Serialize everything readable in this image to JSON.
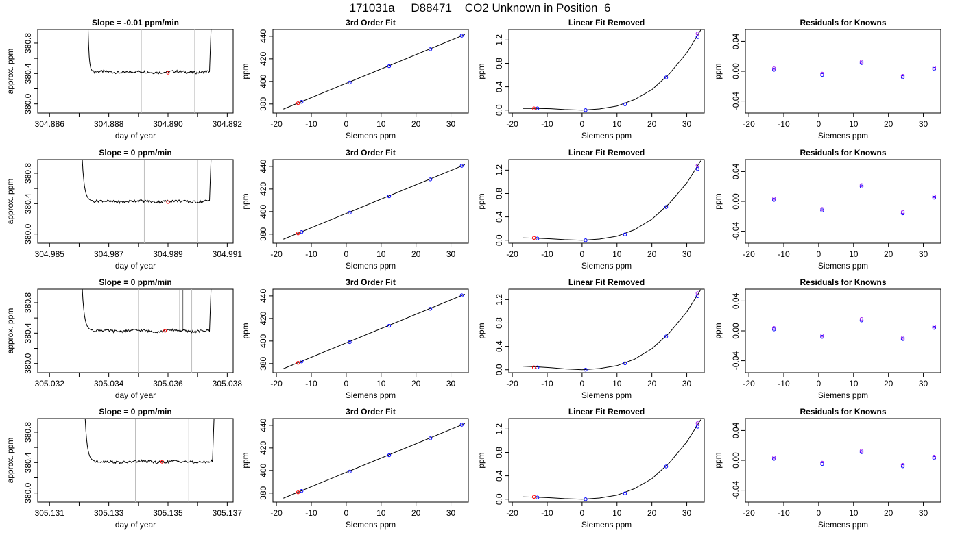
{
  "figure_title": "171031a     D88471    CO2 Unknown in Position  6",
  "colors": {
    "series": "#000000",
    "marker_red": "#ff0000",
    "marker_blue": "#0000ff",
    "marker_purple": "#a020f0",
    "vline": "#bebebe"
  },
  "chart_data": [
    {
      "type": "line",
      "title": "Slope =  -0.01  ppm/min",
      "xlabel": "day of year",
      "ylabel": "approx. ppm",
      "xticks": [
        "304.886",
        "304.888",
        "304.890",
        "304.892"
      ],
      "yticks": [
        "380.0",
        "380.4",
        "380.8"
      ],
      "xlim": [
        304.8856,
        304.8922
      ],
      "ylim": [
        379.88,
        380.98
      ],
      "vlines": [
        304.8891,
        304.8909
      ],
      "marker": {
        "x": 304.89,
        "y": 380.41
      },
      "trace": {
        "start": 304.8872,
        "end": 304.8915,
        "baseline": 380.42,
        "rise_left": 304.8873,
        "steady_start": 304.8874,
        "steady_end": 304.8914
      }
    },
    {
      "type": "scatter",
      "title": "3rd Order Fit",
      "xlabel": "Siemens ppm",
      "ylabel": "ppm",
      "xticks": [
        "-20",
        "-10",
        "0",
        "10",
        "20",
        "30"
      ],
      "yticks": [
        "380",
        "400",
        "420",
        "440"
      ],
      "xlim": [
        -21,
        35
      ],
      "ylim": [
        372,
        446
      ],
      "fit_line": {
        "x": [
          -18,
          34
        ],
        "y": [
          375.5,
          441.5
        ]
      },
      "points": [
        {
          "x": -12.8,
          "y": 381.9,
          "color": "blue"
        },
        {
          "x": 1.0,
          "y": 399.0,
          "color": "blue"
        },
        {
          "x": 12.3,
          "y": 413.5,
          "color": "blue"
        },
        {
          "x": 24.1,
          "y": 428.5,
          "color": "blue"
        },
        {
          "x": 33.1,
          "y": 440.5,
          "color": "blue"
        },
        {
          "x": -13.8,
          "y": 380.7,
          "color": "red"
        }
      ]
    },
    {
      "type": "scatter",
      "title": "Linear Fit Removed",
      "xlabel": "Siemens ppm",
      "ylabel": "ppm",
      "xticks": [
        "-20",
        "-10",
        "0",
        "10",
        "20",
        "30"
      ],
      "yticks": [
        "0.0",
        "0.4",
        "0.8",
        "1.2"
      ],
      "xlim": [
        -21,
        35
      ],
      "ylim": [
        -0.05,
        1.38
      ],
      "curve": {
        "x": [
          -17,
          -13,
          -9,
          -5,
          0,
          5,
          10,
          15,
          20,
          25,
          30,
          34
        ],
        "y": [
          0.03,
          0.03,
          0.025,
          0.01,
          0.0,
          0.02,
          0.07,
          0.18,
          0.35,
          0.62,
          0.98,
          1.37
        ]
      },
      "points": [
        {
          "x": -12.8,
          "y": 0.03,
          "color": "blue"
        },
        {
          "x": 1.0,
          "y": 0.0,
          "color": "blue"
        },
        {
          "x": 12.3,
          "y": 0.1,
          "color": "blue"
        },
        {
          "x": 24.1,
          "y": 0.56,
          "color": "blue"
        },
        {
          "x": 33.1,
          "y": 1.25,
          "color": "blue"
        },
        {
          "x": 33.1,
          "y": 1.31,
          "color": "purple"
        },
        {
          "x": -13.8,
          "y": 0.03,
          "color": "red"
        }
      ]
    },
    {
      "type": "scatter",
      "title": "Residuals for Knowns",
      "xlabel": "Siemens ppm",
      "ylabel": "ppm",
      "xticks": [
        "-20",
        "-10",
        "0",
        "10",
        "20",
        "30"
      ],
      "yticks": [
        "-0.04",
        "0.00",
        "0.04"
      ],
      "xlim": [
        -21,
        35
      ],
      "ylim": [
        -0.056,
        0.056
      ],
      "points": [
        {
          "x": -12.8,
          "y": 0.002,
          "color": "blue"
        },
        {
          "x": 1.0,
          "y": -0.005,
          "color": "blue"
        },
        {
          "x": 12.3,
          "y": 0.011,
          "color": "blue"
        },
        {
          "x": 24.1,
          "y": -0.008,
          "color": "blue"
        },
        {
          "x": 33.1,
          "y": 0.003,
          "color": "blue"
        }
      ]
    },
    {
      "type": "line",
      "title": "Slope =  0  ppm/min",
      "xlabel": "day of year",
      "ylabel": "approx. ppm",
      "xticks": [
        "304.985",
        "304.987",
        "304.989",
        "304.991"
      ],
      "yticks": [
        "380.0",
        "380.4",
        "380.8"
      ],
      "xlim": [
        304.9846,
        304.9912
      ],
      "ylim": [
        379.88,
        380.98
      ],
      "vlines": [
        304.9882,
        304.99
      ],
      "marker": {
        "x": 304.989,
        "y": 380.42
      },
      "trace": {
        "start": 304.986,
        "end": 304.9905,
        "baseline": 380.43,
        "rise_left": 304.9861,
        "steady_start": 304.9863,
        "steady_end": 304.9904
      }
    },
    {
      "type": "scatter",
      "title": "3rd Order Fit",
      "xlabel": "Siemens ppm",
      "ylabel": "ppm",
      "xticks": [
        "-20",
        "-10",
        "0",
        "10",
        "20",
        "30"
      ],
      "yticks": [
        "380",
        "400",
        "420",
        "440"
      ],
      "xlim": [
        -21,
        35
      ],
      "ylim": [
        372,
        446
      ],
      "fit_line": {
        "x": [
          -18,
          34
        ],
        "y": [
          375.5,
          441.5
        ]
      },
      "points": [
        {
          "x": -12.8,
          "y": 381.9,
          "color": "blue"
        },
        {
          "x": 1.0,
          "y": 399.0,
          "color": "blue"
        },
        {
          "x": 12.3,
          "y": 413.5,
          "color": "blue"
        },
        {
          "x": 24.1,
          "y": 428.5,
          "color": "blue"
        },
        {
          "x": 33.1,
          "y": 440.5,
          "color": "blue"
        },
        {
          "x": -13.8,
          "y": 380.7,
          "color": "red"
        }
      ]
    },
    {
      "type": "scatter",
      "title": "Linear Fit Removed",
      "xlabel": "Siemens ppm",
      "ylabel": "ppm",
      "xticks": [
        "-20",
        "-10",
        "0",
        "10",
        "20",
        "30"
      ],
      "yticks": [
        "0.0",
        "0.4",
        "0.8",
        "1.2"
      ],
      "xlim": [
        -21,
        35
      ],
      "ylim": [
        -0.05,
        1.38
      ],
      "curve": {
        "x": [
          -17,
          -13,
          -9,
          -5,
          0,
          5,
          10,
          15,
          20,
          25,
          30,
          34
        ],
        "y": [
          0.04,
          0.035,
          0.025,
          0.01,
          0.0,
          0.02,
          0.07,
          0.18,
          0.36,
          0.63,
          0.98,
          1.36
        ]
      },
      "points": [
        {
          "x": -12.8,
          "y": 0.03,
          "color": "blue"
        },
        {
          "x": 1.0,
          "y": 0.0,
          "color": "blue"
        },
        {
          "x": 12.3,
          "y": 0.1,
          "color": "blue"
        },
        {
          "x": 24.1,
          "y": 0.57,
          "color": "blue"
        },
        {
          "x": 33.1,
          "y": 1.22,
          "color": "blue"
        },
        {
          "x": 33.1,
          "y": 1.28,
          "color": "purple"
        },
        {
          "x": -13.8,
          "y": 0.04,
          "color": "red"
        }
      ]
    },
    {
      "type": "scatter",
      "title": "Residuals for Knowns",
      "xlabel": "Siemens ppm",
      "ylabel": "ppm",
      "xticks": [
        "-20",
        "-10",
        "0",
        "10",
        "20",
        "30"
      ],
      "yticks": [
        "-0.04",
        "0.00",
        "0.04"
      ],
      "xlim": [
        -21,
        35
      ],
      "ylim": [
        -0.056,
        0.056
      ],
      "points": [
        {
          "x": -12.8,
          "y": 0.002,
          "color": "blue"
        },
        {
          "x": 1.0,
          "y": -0.012,
          "color": "blue"
        },
        {
          "x": 12.3,
          "y": 0.02,
          "color": "blue"
        },
        {
          "x": 24.1,
          "y": -0.016,
          "color": "blue"
        },
        {
          "x": 33.1,
          "y": 0.005,
          "color": "blue"
        }
      ]
    },
    {
      "type": "line",
      "title": "Slope =  0  ppm/min",
      "xlabel": "day of year",
      "ylabel": "approx. ppm",
      "xticks": [
        "305.032",
        "305.034",
        "305.036",
        "305.038"
      ],
      "yticks": [
        "380.0",
        "380.4",
        "380.8"
      ],
      "xlim": [
        305.0316,
        305.0382
      ],
      "ylim": [
        379.88,
        380.98
      ],
      "vlines": [
        305.035,
        305.0368
      ],
      "marker": {
        "x": 305.0359,
        "y": 380.43
      },
      "spike": [
        305.0364,
        305.0365
      ],
      "trace": {
        "start": 305.033,
        "end": 305.0375,
        "baseline": 380.43,
        "rise_left": 305.0331,
        "steady_start": 305.0333,
        "steady_end": 305.0374
      }
    },
    {
      "type": "scatter",
      "title": "3rd Order Fit",
      "xlabel": "Siemens ppm",
      "ylabel": "ppm",
      "xticks": [
        "-20",
        "-10",
        "0",
        "10",
        "20",
        "30"
      ],
      "yticks": [
        "380",
        "400",
        "420",
        "440"
      ],
      "xlim": [
        -21,
        35
      ],
      "ylim": [
        372,
        446
      ],
      "fit_line": {
        "x": [
          -18,
          34
        ],
        "y": [
          375.5,
          441.5
        ]
      },
      "points": [
        {
          "x": -12.8,
          "y": 381.9,
          "color": "blue"
        },
        {
          "x": 1.0,
          "y": 399.0,
          "color": "blue"
        },
        {
          "x": 12.3,
          "y": 413.5,
          "color": "blue"
        },
        {
          "x": 24.1,
          "y": 428.5,
          "color": "blue"
        },
        {
          "x": 33.1,
          "y": 440.5,
          "color": "blue"
        },
        {
          "x": -13.8,
          "y": 380.7,
          "color": "red"
        }
      ]
    },
    {
      "type": "scatter",
      "title": "Linear Fit Removed",
      "xlabel": "Siemens ppm",
      "ylabel": "ppm",
      "xticks": [
        "-20",
        "-10",
        "0",
        "10",
        "20",
        "30"
      ],
      "yticks": [
        "0.0",
        "0.4",
        "0.8",
        "1.2"
      ],
      "xlim": [
        -21,
        35
      ],
      "ylim": [
        -0.05,
        1.38
      ],
      "curve": {
        "x": [
          -17,
          -13,
          -9,
          -5,
          0,
          5,
          10,
          15,
          20,
          25,
          30,
          34
        ],
        "y": [
          0.06,
          0.05,
          0.035,
          0.015,
          0.0,
          0.02,
          0.07,
          0.18,
          0.36,
          0.63,
          0.99,
          1.37
        ]
      },
      "points": [
        {
          "x": -12.8,
          "y": 0.04,
          "color": "blue"
        },
        {
          "x": 1.0,
          "y": 0.0,
          "color": "blue"
        },
        {
          "x": 12.3,
          "y": 0.11,
          "color": "blue"
        },
        {
          "x": 24.1,
          "y": 0.57,
          "color": "blue"
        },
        {
          "x": 33.1,
          "y": 1.26,
          "color": "blue"
        },
        {
          "x": 33.1,
          "y": 1.31,
          "color": "purple"
        },
        {
          "x": -13.8,
          "y": 0.04,
          "color": "red"
        }
      ]
    },
    {
      "type": "scatter",
      "title": "Residuals for Knowns",
      "xlabel": "Siemens ppm",
      "ylabel": "ppm",
      "xticks": [
        "-20",
        "-10",
        "0",
        "10",
        "20",
        "30"
      ],
      "yticks": [
        "-0.04",
        "0.00",
        "0.04"
      ],
      "xlim": [
        -21,
        35
      ],
      "ylim": [
        -0.056,
        0.056
      ],
      "points": [
        {
          "x": -12.8,
          "y": 0.002,
          "color": "blue"
        },
        {
          "x": 1.0,
          "y": -0.008,
          "color": "blue"
        },
        {
          "x": 12.3,
          "y": 0.014,
          "color": "blue"
        },
        {
          "x": 24.1,
          "y": -0.011,
          "color": "blue"
        },
        {
          "x": 33.1,
          "y": 0.004,
          "color": "blue"
        }
      ]
    },
    {
      "type": "line",
      "title": "Slope =  0  ppm/min",
      "xlabel": "day of year",
      "ylabel": "approx. ppm",
      "xticks": [
        "305.131",
        "305.133",
        "305.135",
        "305.137"
      ],
      "yticks": [
        "380.0",
        "380.4",
        "380.8"
      ],
      "xlim": [
        305.1306,
        305.1372
      ],
      "ylim": [
        379.88,
        380.98
      ],
      "vlines": [
        305.1339,
        305.1357
      ],
      "marker": {
        "x": 305.1348,
        "y": 380.41
      },
      "trace": {
        "start": 305.1321,
        "end": 305.1366,
        "baseline": 380.41,
        "rise_left": 305.1322,
        "steady_start": 305.1324,
        "steady_end": 305.1365
      }
    },
    {
      "type": "scatter",
      "title": "3rd Order Fit",
      "xlabel": "Siemens ppm",
      "ylabel": "ppm",
      "xticks": [
        "-20",
        "-10",
        "0",
        "10",
        "20",
        "30"
      ],
      "yticks": [
        "380",
        "400",
        "420",
        "440"
      ],
      "xlim": [
        -21,
        35
      ],
      "ylim": [
        372,
        446
      ],
      "fit_line": {
        "x": [
          -18,
          34
        ],
        "y": [
          375.5,
          441.5
        ]
      },
      "points": [
        {
          "x": -12.8,
          "y": 381.9,
          "color": "blue"
        },
        {
          "x": 1.0,
          "y": 399.0,
          "color": "blue"
        },
        {
          "x": 12.3,
          "y": 413.5,
          "color": "blue"
        },
        {
          "x": 24.1,
          "y": 428.5,
          "color": "blue"
        },
        {
          "x": 33.1,
          "y": 440.5,
          "color": "blue"
        },
        {
          "x": -13.8,
          "y": 380.7,
          "color": "red"
        }
      ]
    },
    {
      "type": "scatter",
      "title": "Linear Fit Removed",
      "xlabel": "Siemens ppm",
      "ylabel": "ppm",
      "xticks": [
        "-20",
        "-10",
        "0",
        "10",
        "20",
        "30"
      ],
      "yticks": [
        "0.0",
        "0.4",
        "0.8",
        "1.2"
      ],
      "xlim": [
        -21,
        35
      ],
      "ylim": [
        -0.05,
        1.38
      ],
      "curve": {
        "x": [
          -17,
          -13,
          -9,
          -5,
          0,
          5,
          10,
          15,
          20,
          25,
          30,
          34
        ],
        "y": [
          0.04,
          0.035,
          0.025,
          0.01,
          0.0,
          0.02,
          0.07,
          0.18,
          0.35,
          0.62,
          0.98,
          1.36
        ]
      },
      "points": [
        {
          "x": -12.8,
          "y": 0.03,
          "color": "blue"
        },
        {
          "x": 1.0,
          "y": 0.0,
          "color": "blue"
        },
        {
          "x": 12.3,
          "y": 0.1,
          "color": "blue"
        },
        {
          "x": 24.1,
          "y": 0.56,
          "color": "blue"
        },
        {
          "x": 33.1,
          "y": 1.24,
          "color": "blue"
        },
        {
          "x": 33.1,
          "y": 1.3,
          "color": "purple"
        },
        {
          "x": -13.8,
          "y": 0.04,
          "color": "red"
        }
      ]
    },
    {
      "type": "scatter",
      "title": "Residuals for Knowns",
      "xlabel": "Siemens ppm",
      "ylabel": "ppm",
      "xticks": [
        "-20",
        "-10",
        "0",
        "10",
        "20",
        "30"
      ],
      "yticks": [
        "-0.04",
        "0.00",
        "0.04"
      ],
      "xlim": [
        -21,
        35
      ],
      "ylim": [
        -0.056,
        0.056
      ],
      "points": [
        {
          "x": -12.8,
          "y": 0.002,
          "color": "blue"
        },
        {
          "x": 1.0,
          "y": -0.005,
          "color": "blue"
        },
        {
          "x": 12.3,
          "y": 0.011,
          "color": "blue"
        },
        {
          "x": 24.1,
          "y": -0.008,
          "color": "blue"
        },
        {
          "x": 33.1,
          "y": 0.003,
          "color": "blue"
        }
      ]
    }
  ]
}
